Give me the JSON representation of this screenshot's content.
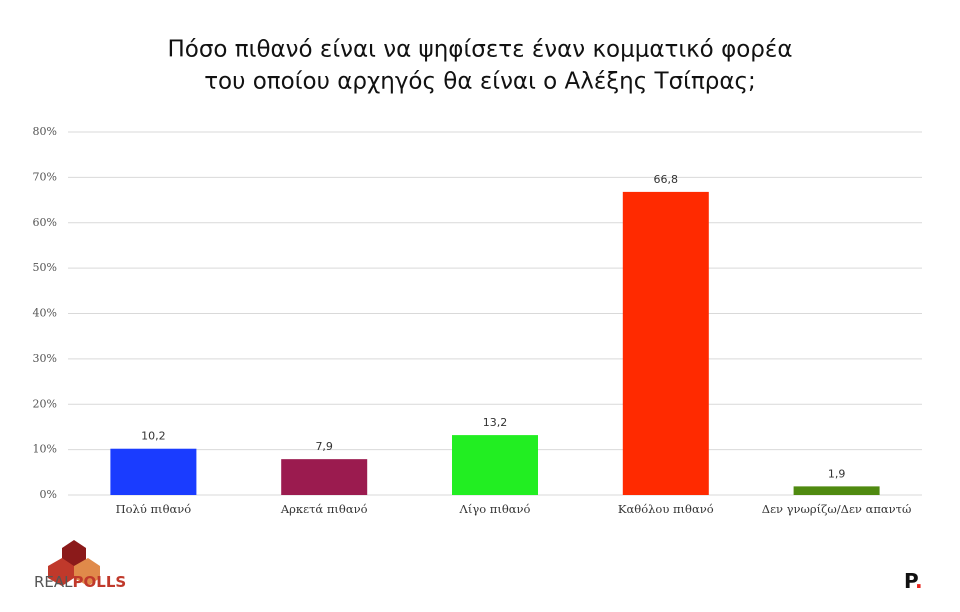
{
  "chart_data": {
    "type": "bar",
    "title": [
      "Πόσο πιθανό είναι να ψηφίσετε έναν κομματικό φορέα",
      "του οποίου αρχηγός θα είναι ο Αλέξης Τσίπρας;"
    ],
    "categories": [
      "Πολύ πιθανό",
      "Αρκετά πιθανό",
      "Λίγο πιθανό",
      "Καθόλου πιθανό",
      "Δεν γνωρίζω/Δεν απαντώ"
    ],
    "values": [
      10.2,
      7.9,
      13.2,
      66.8,
      1.9
    ],
    "value_labels": [
      "10,2",
      "7,9",
      "13,2",
      "66,8",
      "1,9"
    ],
    "colors": [
      "#1a3cff",
      "#9b1b4f",
      "#22ee22",
      "#ff2a00",
      "#4f8a10"
    ],
    "ylim": [
      0,
      80
    ],
    "yticks": [
      {
        "value": 0,
        "label": "0%"
      },
      {
        "value": 10,
        "label": "10%"
      },
      {
        "value": 20,
        "label": "20%"
      },
      {
        "value": 30,
        "label": "30%"
      },
      {
        "value": 40,
        "label": "40%"
      },
      {
        "value": 50,
        "label": "50%"
      },
      {
        "value": 60,
        "label": "60%"
      },
      {
        "value": 70,
        "label": "70%"
      },
      {
        "value": 80,
        "label": "80%"
      }
    ],
    "grid": true
  },
  "logos": {
    "left": [
      "REAL",
      "POLLS"
    ],
    "right": [
      "P",
      "."
    ]
  }
}
